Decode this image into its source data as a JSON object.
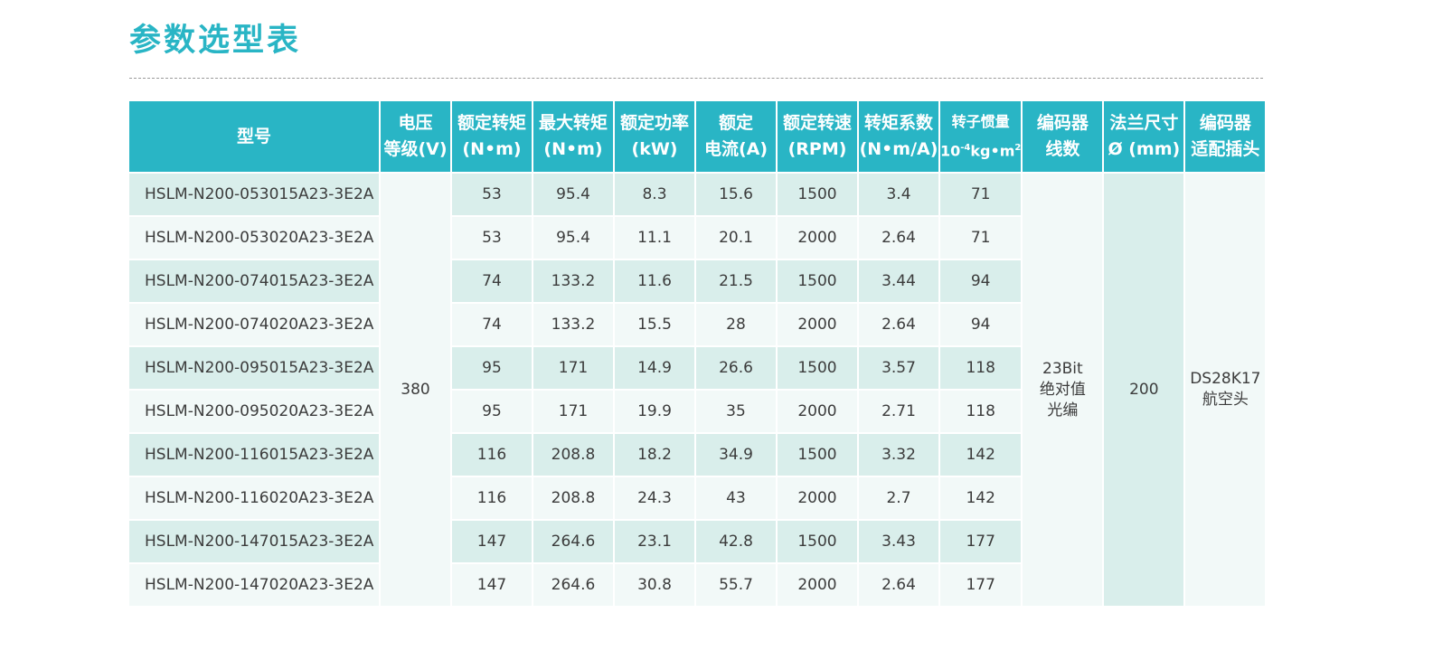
{
  "page": {
    "title": "参数选型表"
  },
  "table": {
    "headers": [
      {
        "lines": [
          "型号"
        ]
      },
      {
        "lines": [
          "电压",
          "等级(V)"
        ]
      },
      {
        "lines": [
          "额定转矩",
          "(N•m)"
        ]
      },
      {
        "lines": [
          "最大转矩",
          "(N•m)"
        ]
      },
      {
        "lines": [
          "额定功率",
          "(kW)"
        ]
      },
      {
        "lines": [
          "额定",
          "电流(A)"
        ]
      },
      {
        "lines": [
          "额定转速",
          "(RPM)"
        ]
      },
      {
        "lines": [
          "转矩系数",
          "(N•m/A)"
        ]
      },
      {
        "lines": [
          "转子惯量",
          "10",
          "-4",
          "kg•m",
          "2"
        ]
      },
      {
        "lines": [
          "编码器",
          "线数"
        ]
      },
      {
        "lines": [
          "法兰尺寸",
          "Ø (mm)"
        ]
      },
      {
        "lines": [
          "编码器",
          "适配插头"
        ]
      }
    ],
    "shared": {
      "voltage": "380",
      "encoder_lines": [
        "23Bit",
        "绝对值",
        "光编"
      ],
      "flange": "200",
      "connector_lines": [
        "DS28K17",
        "航空头"
      ]
    },
    "rows": [
      {
        "model": "HSLM-N200-053015A23-3E2A",
        "rated_torque": "53",
        "max_torque": "95.4",
        "rated_power": "8.3",
        "rated_current": "15.6",
        "rated_speed": "1500",
        "torque_coeff": "3.4",
        "inertia": "71"
      },
      {
        "model": "HSLM-N200-053020A23-3E2A",
        "rated_torque": "53",
        "max_torque": "95.4",
        "rated_power": "11.1",
        "rated_current": "20.1",
        "rated_speed": "2000",
        "torque_coeff": "2.64",
        "inertia": "71"
      },
      {
        "model": "HSLM-N200-074015A23-3E2A",
        "rated_torque": "74",
        "max_torque": "133.2",
        "rated_power": "11.6",
        "rated_current": "21.5",
        "rated_speed": "1500",
        "torque_coeff": "3.44",
        "inertia": "94"
      },
      {
        "model": "HSLM-N200-074020A23-3E2A",
        "rated_torque": "74",
        "max_torque": "133.2",
        "rated_power": "15.5",
        "rated_current": "28",
        "rated_speed": "2000",
        "torque_coeff": "2.64",
        "inertia": "94"
      },
      {
        "model": "HSLM-N200-095015A23-3E2A",
        "rated_torque": "95",
        "max_torque": "171",
        "rated_power": "14.9",
        "rated_current": "26.6",
        "rated_speed": "1500",
        "torque_coeff": "3.57",
        "inertia": "118"
      },
      {
        "model": "HSLM-N200-095020A23-3E2A",
        "rated_torque": "95",
        "max_torque": "171",
        "rated_power": "19.9",
        "rated_current": "35",
        "rated_speed": "2000",
        "torque_coeff": "2.71",
        "inertia": "118"
      },
      {
        "model": "HSLM-N200-116015A23-3E2A",
        "rated_torque": "116",
        "max_torque": "208.8",
        "rated_power": "18.2",
        "rated_current": "34.9",
        "rated_speed": "1500",
        "torque_coeff": "3.32",
        "inertia": "142"
      },
      {
        "model": "HSLM-N200-116020A23-3E2A",
        "rated_torque": "116",
        "max_torque": "208.8",
        "rated_power": "24.3",
        "rated_current": "43",
        "rated_speed": "2000",
        "torque_coeff": "2.7",
        "inertia": "142"
      },
      {
        "model": "HSLM-N200-147015A23-3E2A",
        "rated_torque": "147",
        "max_torque": "264.6",
        "rated_power": "23.1",
        "rated_current": "42.8",
        "rated_speed": "1500",
        "torque_coeff": "3.43",
        "inertia": "177"
      },
      {
        "model": "HSLM-N200-147020A23-3E2A",
        "rated_torque": "147",
        "max_torque": "264.6",
        "rated_power": "30.8",
        "rated_current": "55.7",
        "rated_speed": "2000",
        "torque_coeff": "2.64",
        "inertia": "177"
      }
    ]
  },
  "colors": {
    "accent": "#29b5c5",
    "row_dark": "#d9eeeb",
    "row_light": "#f2f9f8",
    "text": "#3c3c3c"
  }
}
